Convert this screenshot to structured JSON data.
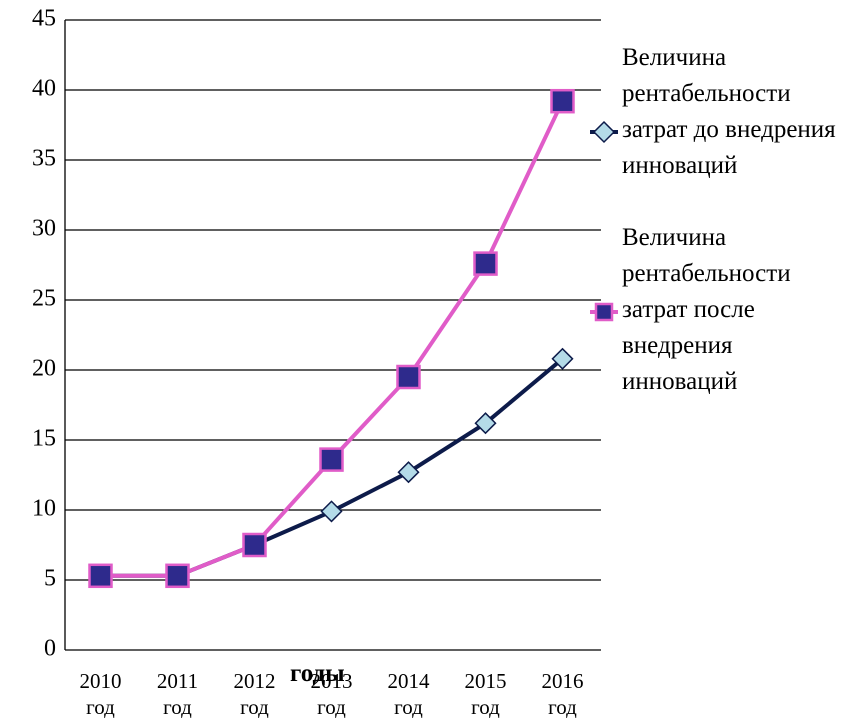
{
  "chart_data": {
    "type": "line",
    "x_label": "годы",
    "categories": [
      "2010 год",
      "2011 год",
      "2012 год",
      "2013 год",
      "2014 год",
      "2015 год",
      "2016 год"
    ],
    "series": [
      {
        "name": "Величина рентабельности затрат до внедрения инноваций",
        "color": "#0d1b4a",
        "marker": "diamond",
        "marker_color": "#b4dbe8",
        "values": [
          5.3,
          5.3,
          7.5,
          9.9,
          12.7,
          16.2,
          20.8
        ]
      },
      {
        "name": "Величина рентабельности затрат после внедрения инноваций",
        "color": "#e05cc8",
        "marker": "square",
        "marker_color": "#2e2a8c",
        "values": [
          5.3,
          5.3,
          7.5,
          13.6,
          19.5,
          27.6,
          39.2
        ]
      }
    ],
    "ylim": [
      0,
      45
    ],
    "yticks": [
      0,
      5,
      10,
      15,
      20,
      25,
      30,
      35,
      40,
      45
    ],
    "grid": true,
    "legend": "right"
  }
}
